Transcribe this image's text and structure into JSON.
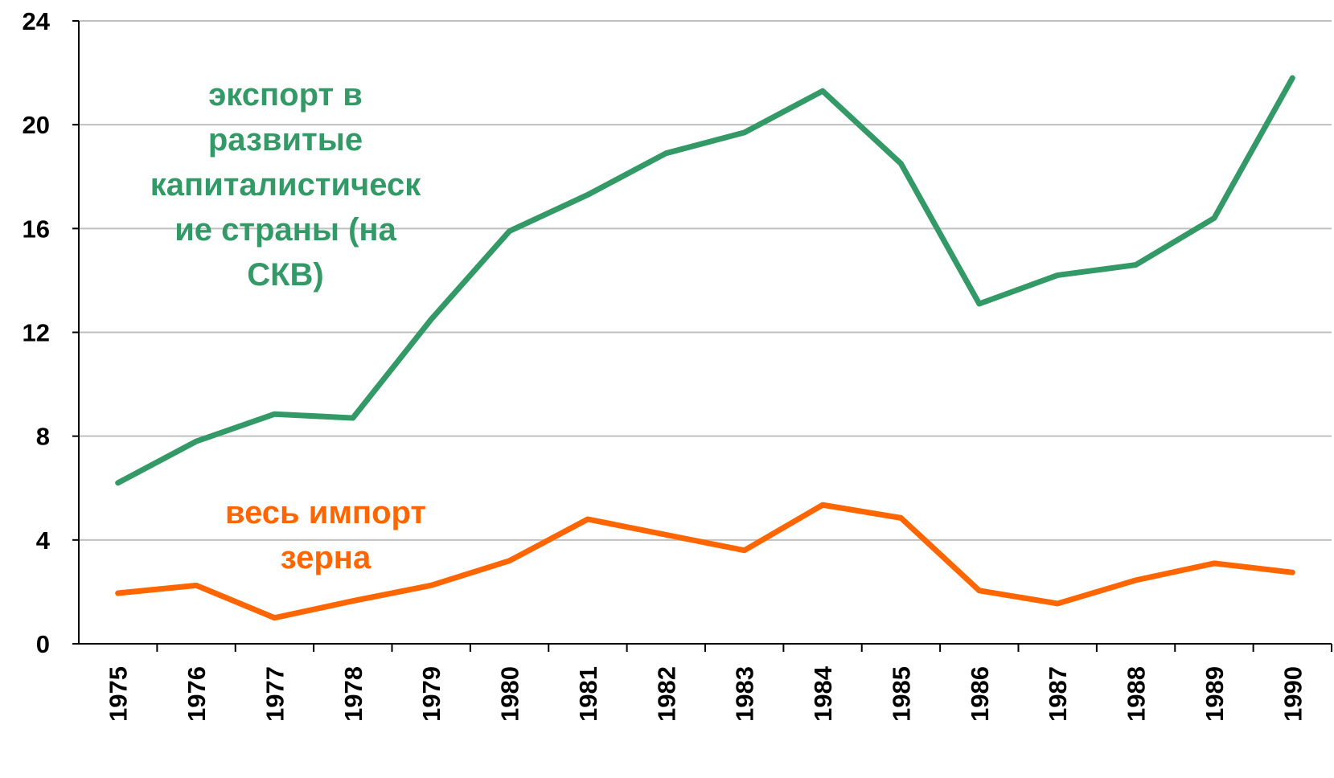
{
  "chart_data": {
    "type": "line",
    "categories": [
      "1975",
      "1976",
      "1977",
      "1978",
      "1979",
      "1980",
      "1981",
      "1982",
      "1983",
      "1984",
      "1985",
      "1986",
      "1987",
      "1988",
      "1989",
      "1990"
    ],
    "series": [
      {
        "name": "экспорт в развитые капиталистические страны (на СКВ)",
        "color": "#339966",
        "values": [
          6.2,
          7.8,
          8.85,
          8.7,
          12.5,
          15.9,
          17.3,
          18.9,
          19.7,
          21.3,
          18.5,
          13.1,
          14.2,
          14.6,
          16.4,
          21.8
        ]
      },
      {
        "name": "весь импорт зерна",
        "color": "#ff6600",
        "values": [
          1.95,
          2.25,
          1.0,
          1.65,
          2.25,
          3.2,
          4.8,
          4.2,
          3.6,
          5.35,
          4.85,
          2.05,
          1.55,
          2.45,
          3.1,
          2.75
        ]
      }
    ],
    "ylim": [
      0,
      24
    ],
    "yticks": [
      0,
      4,
      8,
      12,
      16,
      20,
      24
    ],
    "grid": true
  }
}
